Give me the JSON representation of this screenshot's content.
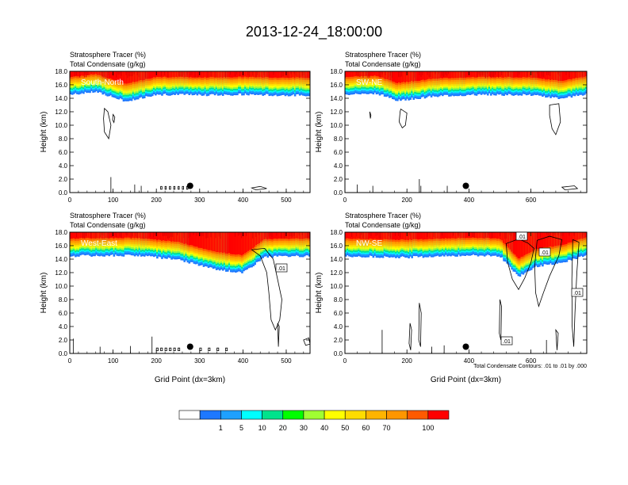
{
  "figure": {
    "title": "2013-12-24_18:00:00",
    "contour_note": "Total Condensate Contours: .01 to .01 by .000"
  },
  "colors": {
    "levels": [
      "#ffffff",
      "#1e78ff",
      "#1ea0ff",
      "#00ffff",
      "#00e38c",
      "#00ff00",
      "#a0ff32",
      "#ffff00",
      "#ffdc00",
      "#ffb400",
      "#ff9600",
      "#ff5a00",
      "#ff0000"
    ],
    "contour": "#000000"
  },
  "colorbar": {
    "colors": [
      "#ffffff",
      "#1e78ff",
      "#1ea0ff",
      "#00ffff",
      "#00e38c",
      "#00ff00",
      "#a0ff32",
      "#ffff00",
      "#ffdc00",
      "#ffb400",
      "#ff9600",
      "#ff5a00",
      "#ff0000"
    ],
    "labels": [
      "1",
      "5",
      "10",
      "20",
      "30",
      "40",
      "50",
      "60",
      "70",
      "100"
    ]
  },
  "chart_data": [
    {
      "type": "heatmap",
      "name": "South-North",
      "label": "South-North",
      "title_lines": [
        "Stratosphere Tracer   (%)",
        "Total Condensate   (g/kg)"
      ],
      "ylabel": "Height (km)",
      "xlabel": "",
      "xlim": [
        0,
        555
      ],
      "ylim": [
        0,
        18
      ],
      "xticks": [
        "0",
        "100",
        "200",
        "300",
        "400",
        "500"
      ],
      "yticks": [
        "0.0",
        "2.0",
        "4.0",
        "6.0",
        "8.0",
        "10.0",
        "12.0",
        "14.0",
        "16.0",
        "18.0"
      ],
      "tracer_boundary_km": {
        "x": [
          0,
          60,
          130,
          200,
          300,
          400,
          480,
          555
        ],
        "y": [
          14.6,
          15.0,
          13.6,
          14.6,
          14.5,
          14.6,
          14.5,
          14.5
        ]
      },
      "marker": {
        "x": 278,
        "y": 1.0
      },
      "contour_labels": []
    },
    {
      "type": "heatmap",
      "name": "SW-NE",
      "label": "SW-NE",
      "title_lines": [
        "Stratosphere Tracer   (%)",
        "Total Condensate   (g/kg)"
      ],
      "ylabel": "Height (km)",
      "xlabel": "",
      "xlim": [
        0,
        780
      ],
      "ylim": [
        0,
        18
      ],
      "xticks": [
        "0",
        "200",
        "400",
        "600"
      ],
      "yticks": [
        "0.0",
        "2.0",
        "4.0",
        "6.0",
        "8.0",
        "10.0",
        "12.0",
        "14.0",
        "16.0",
        "18.0"
      ],
      "tracer_boundary_km": {
        "x": [
          0,
          100,
          170,
          300,
          450,
          600,
          700,
          780
        ],
        "y": [
          14.6,
          14.8,
          13.7,
          14.4,
          14.6,
          14.5,
          14.0,
          14.7
        ]
      },
      "marker": {
        "x": 390,
        "y": 1.0
      },
      "contour_labels": []
    },
    {
      "type": "heatmap",
      "name": "West-East",
      "label": "West-East",
      "title_lines": [
        "Stratosphere Tracer   (%)",
        "Total Condensate   (g/kg)"
      ],
      "ylabel": "Height (km)",
      "xlabel": "Grid Point (dx=3km)",
      "xlim": [
        0,
        555
      ],
      "ylim": [
        0,
        18
      ],
      "xticks": [
        "0",
        "100",
        "200",
        "300",
        "400",
        "500"
      ],
      "yticks": [
        "0.0",
        "2.0",
        "4.0",
        "6.0",
        "8.0",
        "10.0",
        "12.0",
        "14.0",
        "16.0",
        "18.0"
      ],
      "tracer_boundary_km": {
        "x": [
          0,
          150,
          250,
          330,
          400,
          450,
          555
        ],
        "y": [
          14.5,
          14.6,
          14.0,
          12.6,
          12.0,
          14.4,
          14.5
        ]
      },
      "marker": {
        "x": 278,
        "y": 1.0
      },
      "contour_labels": [
        ".01"
      ]
    },
    {
      "type": "heatmap",
      "name": "NW-SE",
      "label": "NW-SE",
      "title_lines": [
        "Stratosphere Tracer   (%)",
        "Total Condensate   (g/kg)"
      ],
      "ylabel": "Height (km)",
      "xlabel": "Grid Point (dx=3km)",
      "xlim": [
        0,
        780
      ],
      "ylim": [
        0,
        18
      ],
      "xticks": [
        "0",
        "200",
        "400",
        "600"
      ],
      "yticks": [
        "0.0",
        "2.0",
        "4.0",
        "6.0",
        "8.0",
        "10.0",
        "12.0",
        "14.0",
        "16.0",
        "18.0"
      ],
      "tracer_boundary_km": {
        "x": [
          0,
          200,
          400,
          500,
          560,
          620,
          700,
          780
        ],
        "y": [
          14.5,
          14.3,
          14.6,
          14.5,
          11.5,
          13.0,
          13.5,
          14.7
        ]
      },
      "marker": {
        "x": 390,
        "y": 1.0
      },
      "contour_labels": [
        ".01",
        ".01",
        ".01",
        ".01"
      ]
    }
  ]
}
